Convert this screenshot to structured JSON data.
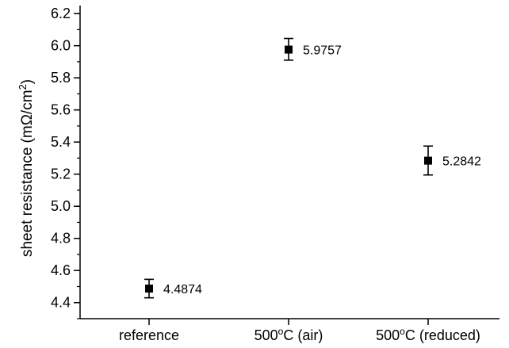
{
  "chart_data": {
    "type": "scatter",
    "ylabel_text": "sheet resistance (mΩ/cm",
    "ylabel_sup": "2",
    "ylabel_close": ")",
    "categories": [
      {
        "pre": "reference",
        "sup": "",
        "post": ""
      },
      {
        "pre": "500",
        "sup": "o",
        "post": "C (air)"
      },
      {
        "pre": "500",
        "sup": "o",
        "post": "C (reduced)"
      }
    ],
    "points": [
      {
        "value": 4.4874,
        "label": "4.4874",
        "err_low": 4.43,
        "err_high": 4.545
      },
      {
        "value": 5.9757,
        "label": "5.9757",
        "err_low": 5.91,
        "err_high": 6.045
      },
      {
        "value": 5.2842,
        "label": "5.2842",
        "err_low": 5.195,
        "err_high": 5.375
      }
    ],
    "ylim": [
      4.3,
      6.25
    ],
    "y_major_ticks": [
      "4.4",
      "4.6",
      "4.8",
      "5.0",
      "5.2",
      "5.4",
      "5.6",
      "5.8",
      "6.0",
      "6.2"
    ],
    "y_minor_step": 0.1,
    "grid": false,
    "legend": "none",
    "marker": "square",
    "color": "#000000"
  }
}
